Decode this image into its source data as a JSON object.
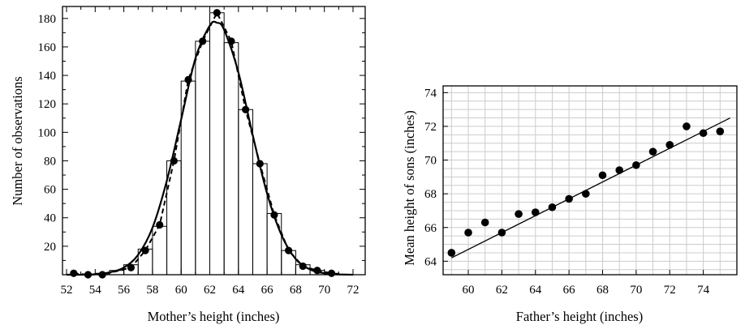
{
  "colors": {
    "ink": "#000000",
    "grid": "#cccccc",
    "background": "#ffffff"
  },
  "chart_data": [
    {
      "type": "histogram",
      "xlabel": "Mother’s height (inches)",
      "ylabel": "Number of observations",
      "xlim": [
        52,
        72
      ],
      "ylim": [
        0,
        185
      ],
      "xticks": [
        52,
        54,
        56,
        58,
        60,
        62,
        64,
        66,
        68,
        70,
        72
      ],
      "xticks_minor": [
        53,
        55,
        57,
        59,
        61,
        63,
        65,
        67,
        69,
        71
      ],
      "yticks": [
        20,
        40,
        60,
        80,
        100,
        120,
        140,
        160,
        180
      ],
      "yticks_minor": [
        10,
        30,
        50,
        70,
        90,
        110,
        130,
        150,
        170
      ],
      "grid": false,
      "bins": [
        {
          "x0": 52,
          "x1": 53,
          "count": 0
        },
        {
          "x0": 53,
          "x1": 54,
          "count": 0
        },
        {
          "x0": 54,
          "x1": 55,
          "count": 1
        },
        {
          "x0": 55,
          "x1": 56,
          "count": 3
        },
        {
          "x0": 56,
          "x1": 57,
          "count": 7
        },
        {
          "x0": 57,
          "x1": 58,
          "count": 18
        },
        {
          "x0": 58,
          "x1": 59,
          "count": 34
        },
        {
          "x0": 59,
          "x1": 60,
          "count": 80
        },
        {
          "x0": 60,
          "x1": 61,
          "count": 136
        },
        {
          "x0": 61,
          "x1": 62,
          "count": 164
        },
        {
          "x0": 62,
          "x1": 63,
          "count": 184
        },
        {
          "x0": 63,
          "x1": 64,
          "count": 163
        },
        {
          "x0": 64,
          "x1": 65,
          "count": 116
        },
        {
          "x0": 65,
          "x1": 66,
          "count": 78
        },
        {
          "x0": 66,
          "x1": 67,
          "count": 43
        },
        {
          "x0": 67,
          "x1": 68,
          "count": 17
        },
        {
          "x0": 68,
          "x1": 69,
          "count": 7
        },
        {
          "x0": 69,
          "x1": 70,
          "count": 3
        },
        {
          "x0": 70,
          "x1": 71,
          "count": 1
        }
      ],
      "series": [
        {
          "style": "dashed-with-points",
          "x": [
            52.5,
            53.5,
            54.5,
            56.5,
            57.5,
            58.5,
            59.5,
            60.5,
            61.5,
            62.5,
            63.5,
            64.5,
            65.5,
            66.5,
            67.5,
            68.5,
            69.5,
            70.5
          ],
          "y": [
            1,
            0,
            0,
            5,
            17,
            35,
            80,
            137,
            164,
            184,
            164,
            116,
            78,
            42,
            17,
            6,
            3,
            1
          ]
        },
        {
          "style": "solid-smooth",
          "x": [
            52,
            53,
            54,
            55,
            56,
            57,
            58,
            59,
            60,
            61,
            62,
            62.5,
            63,
            64,
            65,
            66,
            67,
            68,
            69,
            70,
            71,
            72
          ],
          "y": [
            0,
            0,
            0.4,
            1.6,
            5,
            14,
            33,
            66,
            109,
            152,
            175,
            177,
            172,
            142,
            98,
            57,
            28,
            11,
            3.7,
            1,
            0.2,
            0
          ]
        }
      ]
    },
    {
      "type": "scatter",
      "xlabel": "Father’s height (inches)",
      "ylabel": "Mean height of sons (inches)",
      "xlim": [
        58.5,
        76
      ],
      "ylim": [
        63.2,
        74.4
      ],
      "xticks": [
        60,
        62,
        64,
        66,
        68,
        70,
        72,
        74
      ],
      "yticks": [
        64,
        66,
        68,
        70,
        72,
        74
      ],
      "grid": true,
      "grid_x": [
        59,
        60,
        61,
        62,
        63,
        64,
        65,
        66,
        67,
        68,
        69,
        70,
        71,
        72,
        73,
        74,
        75,
        76
      ],
      "grid_y": [
        63.5,
        64,
        64.5,
        65,
        65.5,
        66,
        66.5,
        67,
        67.5,
        68,
        68.5,
        69,
        69.5,
        70,
        70.5,
        71,
        71.5,
        72,
        72.5,
        73,
        73.5,
        74
      ],
      "points": {
        "x": [
          59,
          60,
          61,
          62,
          63,
          64,
          65,
          66,
          67,
          68,
          69,
          70,
          71,
          72,
          73,
          74,
          75
        ],
        "y": [
          64.5,
          65.7,
          66.3,
          65.7,
          66.8,
          66.9,
          67.2,
          67.7,
          68.0,
          69.1,
          69.4,
          69.7,
          70.5,
          70.9,
          72.0,
          71.6,
          71.7
        ]
      },
      "fit_line": {
        "x": [
          59,
          75.6
        ],
        "y": [
          64.2,
          72.5
        ]
      }
    }
  ]
}
